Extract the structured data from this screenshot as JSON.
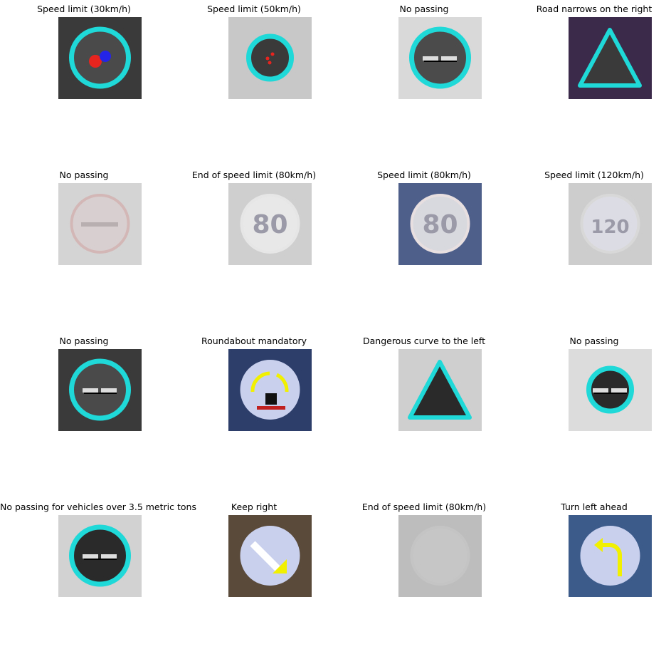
{
  "images": [
    {
      "title": "Speed limit (30km/h)",
      "icon": "speed-limit-30-sign-icon",
      "bg": "#3a3a3a",
      "sign": "circle",
      "ring": "#1fd8d8",
      "fill": "#4a4a4a",
      "mark": "speed30"
    },
    {
      "title": "Speed limit (50km/h)",
      "icon": "speed-limit-50-sign-icon",
      "bg": "#c8c8c8",
      "sign": "circle-small",
      "ring": "#1fd8d8",
      "fill": "#3a3a3a",
      "mark": "dots"
    },
    {
      "title": "No passing",
      "icon": "no-passing-sign-icon",
      "bg": "#d9d9d9",
      "sign": "circle",
      "ring": "#1fd8d8",
      "fill": "#4b4b4b",
      "mark": "bars"
    },
    {
      "title": "Road narrows on the right",
      "icon": "road-narrows-sign-icon",
      "bg": "#3b2a4a",
      "sign": "triangle",
      "ring": "#1fd8d8",
      "fill": "#3a3a3a",
      "mark": "none"
    },
    {
      "title": "No passing",
      "icon": "no-passing-sign-icon",
      "bg": "#d4d4d4",
      "sign": "circle-faint",
      "ring": "#d3b7b7",
      "fill": "#d8d0d0",
      "mark": "faint-bar"
    },
    {
      "title": "End of speed limit (80km/h)",
      "icon": "end-speed-limit-80-sign-icon",
      "bg": "#cfcfcf",
      "sign": "circle-faint",
      "ring": "#e6e6e6",
      "fill": "#e8e8e8",
      "mark": "80"
    },
    {
      "title": "Speed limit (80km/h)",
      "icon": "speed-limit-80-sign-icon",
      "bg": "#4e5f8a",
      "sign": "circle-faint",
      "ring": "#e8e0e0",
      "fill": "#d8d8df",
      "mark": "80"
    },
    {
      "title": "Speed limit (120km/h)",
      "icon": "speed-limit-120-sign-icon",
      "bg": "#cdcdcd",
      "sign": "circle-faint",
      "ring": "#d8d8d8",
      "fill": "#dcdce4",
      "mark": "120"
    },
    {
      "title": "No passing",
      "icon": "no-passing-sign-icon",
      "bg": "#3a3a3a",
      "sign": "circle",
      "ring": "#1fd8d8",
      "fill": "#4a4a4a",
      "mark": "bars"
    },
    {
      "title": "Roundabout mandatory",
      "icon": "roundabout-mandatory-sign-icon",
      "bg": "#2e3e6a",
      "sign": "circle-faint",
      "ring": "#c8d0ee",
      "fill": "#c8d0ee",
      "mark": "roundabout"
    },
    {
      "title": "Dangerous curve to the left",
      "icon": "dangerous-curve-left-sign-icon",
      "bg": "#cfcfcf",
      "sign": "triangle",
      "ring": "#1fd8d8",
      "fill": "#2a2a2a",
      "mark": "none"
    },
    {
      "title": "No passing",
      "icon": "no-passing-sign-icon",
      "bg": "#dcdcdc",
      "sign": "circle-small",
      "ring": "#1fd8d8",
      "fill": "#2a2a2a",
      "mark": "bars"
    },
    {
      "title": "No passing for vehicles over 3.5 metric tons",
      "icon": "no-passing-trucks-sign-icon",
      "bg": "#d2d2d2",
      "sign": "circle",
      "ring": "#1fd8d8",
      "fill": "#2a2a2a",
      "mark": "bars"
    },
    {
      "title": "Keep right",
      "icon": "keep-right-sign-icon",
      "bg": "#5a4a3a",
      "sign": "circle-faint",
      "ring": "#c8d0ee",
      "fill": "#c8d0ee",
      "mark": "arrow-down-right"
    },
    {
      "title": "End of speed limit (80km/h)",
      "icon": "end-speed-limit-80-sign-icon",
      "bg": "#bdbdbd",
      "sign": "circle-faint",
      "ring": "#c4c4c4",
      "fill": "#c6c6c6",
      "mark": "none"
    },
    {
      "title": "Turn left ahead",
      "icon": "turn-left-ahead-sign-icon",
      "bg": "#3c5a8a",
      "sign": "circle-faint",
      "ring": "#c8d0ee",
      "fill": "#c8d0ee",
      "mark": "arrow-left"
    }
  ]
}
